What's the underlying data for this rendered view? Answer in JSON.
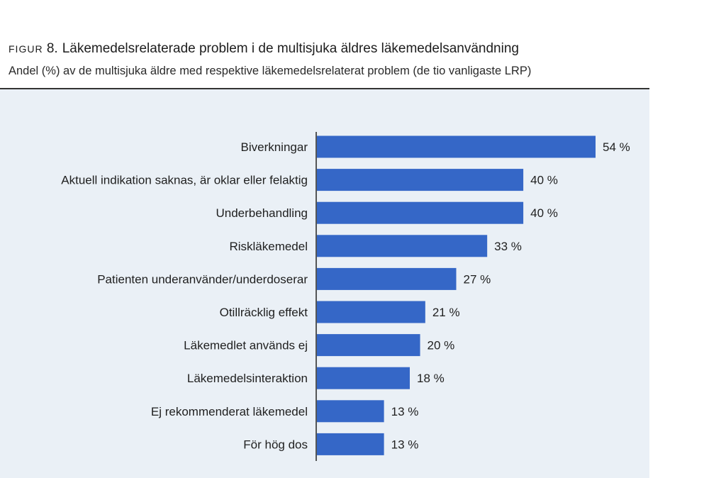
{
  "figure": {
    "label": "Figur",
    "number": "8.",
    "title": "Läkemedelsrelaterade problem i de multisjuka äldres läkemedelsanvändning",
    "subtitle": "Andel (%) av de multisjuka äldre med respektive läkemedelsrelaterat problem (de tio vanligaste LRP)"
  },
  "colors": {
    "bar": "#3567c7",
    "panel": "#eaf0f6",
    "axis": "#222222"
  },
  "chart_data": {
    "type": "bar",
    "orientation": "horizontal",
    "categories": [
      "Biverkningar",
      "Aktuell indikation saknas, är oklar eller felaktig",
      "Underbehandling",
      "Riskläkemedel",
      "Patienten underanvänder/underdoserar",
      "Otillräcklig effekt",
      "Läkemedlet används ej",
      "Läkemedelsinteraktion",
      "Ej rekommenderat läkemedel",
      "För hög dos"
    ],
    "values": [
      54,
      40,
      40,
      33,
      27,
      21,
      20,
      18,
      13,
      13
    ],
    "value_labels": [
      "54 %",
      "40 %",
      "40 %",
      "33 %",
      "27 %",
      "21 %",
      "20 %",
      "18 %",
      "13 %",
      "13 %"
    ],
    "xlim": [
      0,
      60
    ],
    "grid": false,
    "legend": "none"
  }
}
